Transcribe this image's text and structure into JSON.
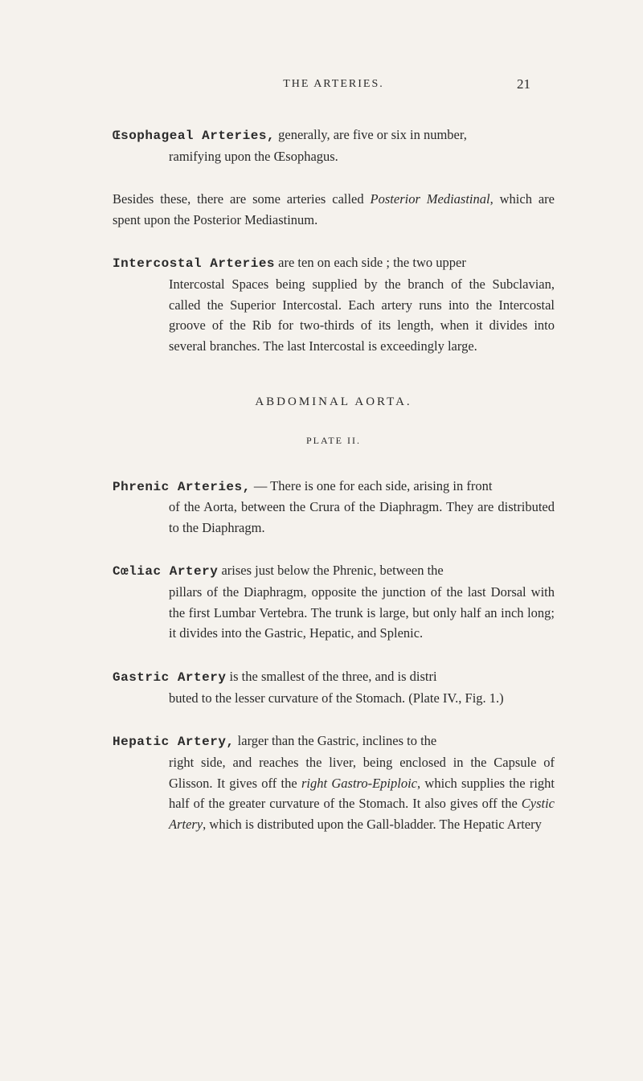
{
  "header": {
    "running_title": "THE ARTERIES.",
    "page_number": "21"
  },
  "entries": [
    {
      "headword": "Œsophageal Arteries,",
      "text_first": " generally, are five or six in number,",
      "text_cont": "ramifying upon the Œsophagus."
    }
  ],
  "para_besides": {
    "text_pre": "Besides these, there are some arteries called ",
    "italic": "Posterior Mediastinal",
    "text_post": ", which are spent upon the Posterior Mediastinum."
  },
  "entry_intercostal": {
    "headword": "Intercostal Arteries",
    "text_first": " are ten on each side ; the two upper",
    "text_cont": "Intercostal Spaces being supplied by the branch of the Subclavian, called the Superior Intercostal. Each artery runs into the Intercostal groove of the Rib for two-thirds of its length, when it divides into several branches. The last Intercostal is exceedingly large."
  },
  "section": {
    "title": "ABDOMINAL AORTA.",
    "plate": "PLATE II."
  },
  "entry_phrenic": {
    "headword": "Phrenic Arteries,",
    "text_first": " — There is one for each side, arising in front",
    "text_cont": "of the Aorta, between the Crura of the Diaphragm. They are distributed to the Diaphragm."
  },
  "entry_coeliac": {
    "headword": "Cœliac Artery",
    "text_first": " arises just below the Phrenic, between the",
    "text_cont": "pillars of the Diaphragm, opposite the junction of the last Dorsal with the first Lumbar Vertebra. The trunk is large, but only half an inch long; it divides into the Gas­tric, Hepatic, and Splenic."
  },
  "entry_gastric": {
    "headword": "Gastric Artery",
    "text_first": " is the smallest of the three, and is distri­",
    "text_cont": "buted to the lesser curvature of the Stomach. (Plate IV., Fig. 1.)"
  },
  "entry_hepatic": {
    "headword": "Hepatic Artery,",
    "text_first": " larger than the Gastric, inclines to the",
    "text_cont_pre": "right side, and reaches the liver, being enclosed in the Capsule of Glisson. It gives off the ",
    "italic1": "right Gastro-Epiploic",
    "text_mid": ", which supplies the right half of the greater curvature of the Stomach. It also gives off the ",
    "italic2": "Cystic Artery",
    "text_end": ", which is distributed upon the Gall-bladder. The Hepatic Artery"
  }
}
